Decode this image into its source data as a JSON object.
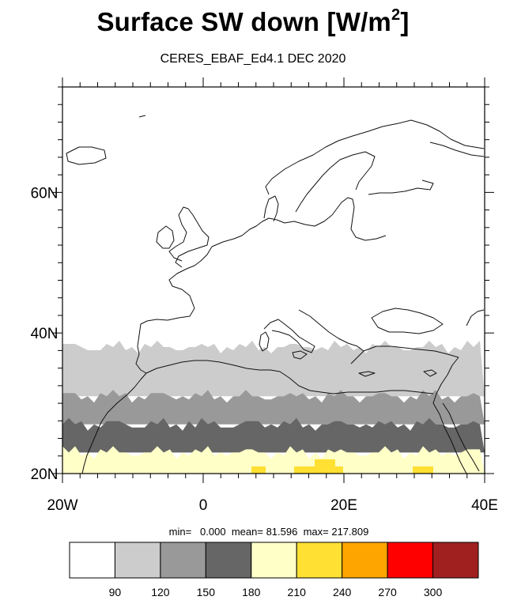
{
  "title": "Surface SW down [W/m",
  "title_sup": "2",
  "title_close": "]",
  "subtitle": "CERES_EBAF_Ed4.1 DEC 2020",
  "stats": {
    "min_label": "min=",
    "min": "0.000",
    "mean_label": "mean=",
    "mean": "81.596",
    "max_label": "max=",
    "max": "217.809"
  },
  "chart_data": {
    "type": "heatmap",
    "title": "Surface SW down [W/m2]",
    "subtitle": "CERES_EBAF_Ed4.1 DEC 2020",
    "xlim": [
      -20,
      40
    ],
    "ylim": [
      20,
      75
    ],
    "x_ticks": [
      {
        "value": -20,
        "label": "20W"
      },
      {
        "value": 0,
        "label": "0"
      },
      {
        "value": 20,
        "label": "20E"
      },
      {
        "value": 40,
        "label": "40E"
      }
    ],
    "y_ticks": [
      {
        "value": 20,
        "label": "20N"
      },
      {
        "value": 40,
        "label": "40N"
      },
      {
        "value": 60,
        "label": "60N"
      }
    ],
    "levels": [
      90,
      120,
      150,
      180,
      210,
      240,
      270,
      300
    ],
    "colors": [
      "#ffffff",
      "#cccccc",
      "#999999",
      "#666666",
      "#ffffc8",
      "#ffe033",
      "#ffa500",
      "#ff0000",
      "#a02020"
    ],
    "zones": [
      {
        "bin": "<90",
        "lat_range": [
          38,
          75
        ],
        "color": "#ffffff"
      },
      {
        "bin": "90-120",
        "lat_range": [
          31,
          38
        ],
        "color": "#cccccc"
      },
      {
        "bin": "120-150",
        "lat_range": [
          27,
          31
        ],
        "color": "#999999"
      },
      {
        "bin": "150-180",
        "lat_range": [
          23,
          27
        ],
        "color": "#666666"
      },
      {
        "bin": "180-210",
        "lat_range": [
          20,
          23
        ],
        "color": "#ffffc8"
      },
      {
        "bin": "210-240",
        "note": "small patches near 20N",
        "color": "#ffe033"
      }
    ],
    "colorbar_labels": [
      "90",
      "120",
      "150",
      "180",
      "210",
      "240",
      "270",
      "300"
    ]
  }
}
